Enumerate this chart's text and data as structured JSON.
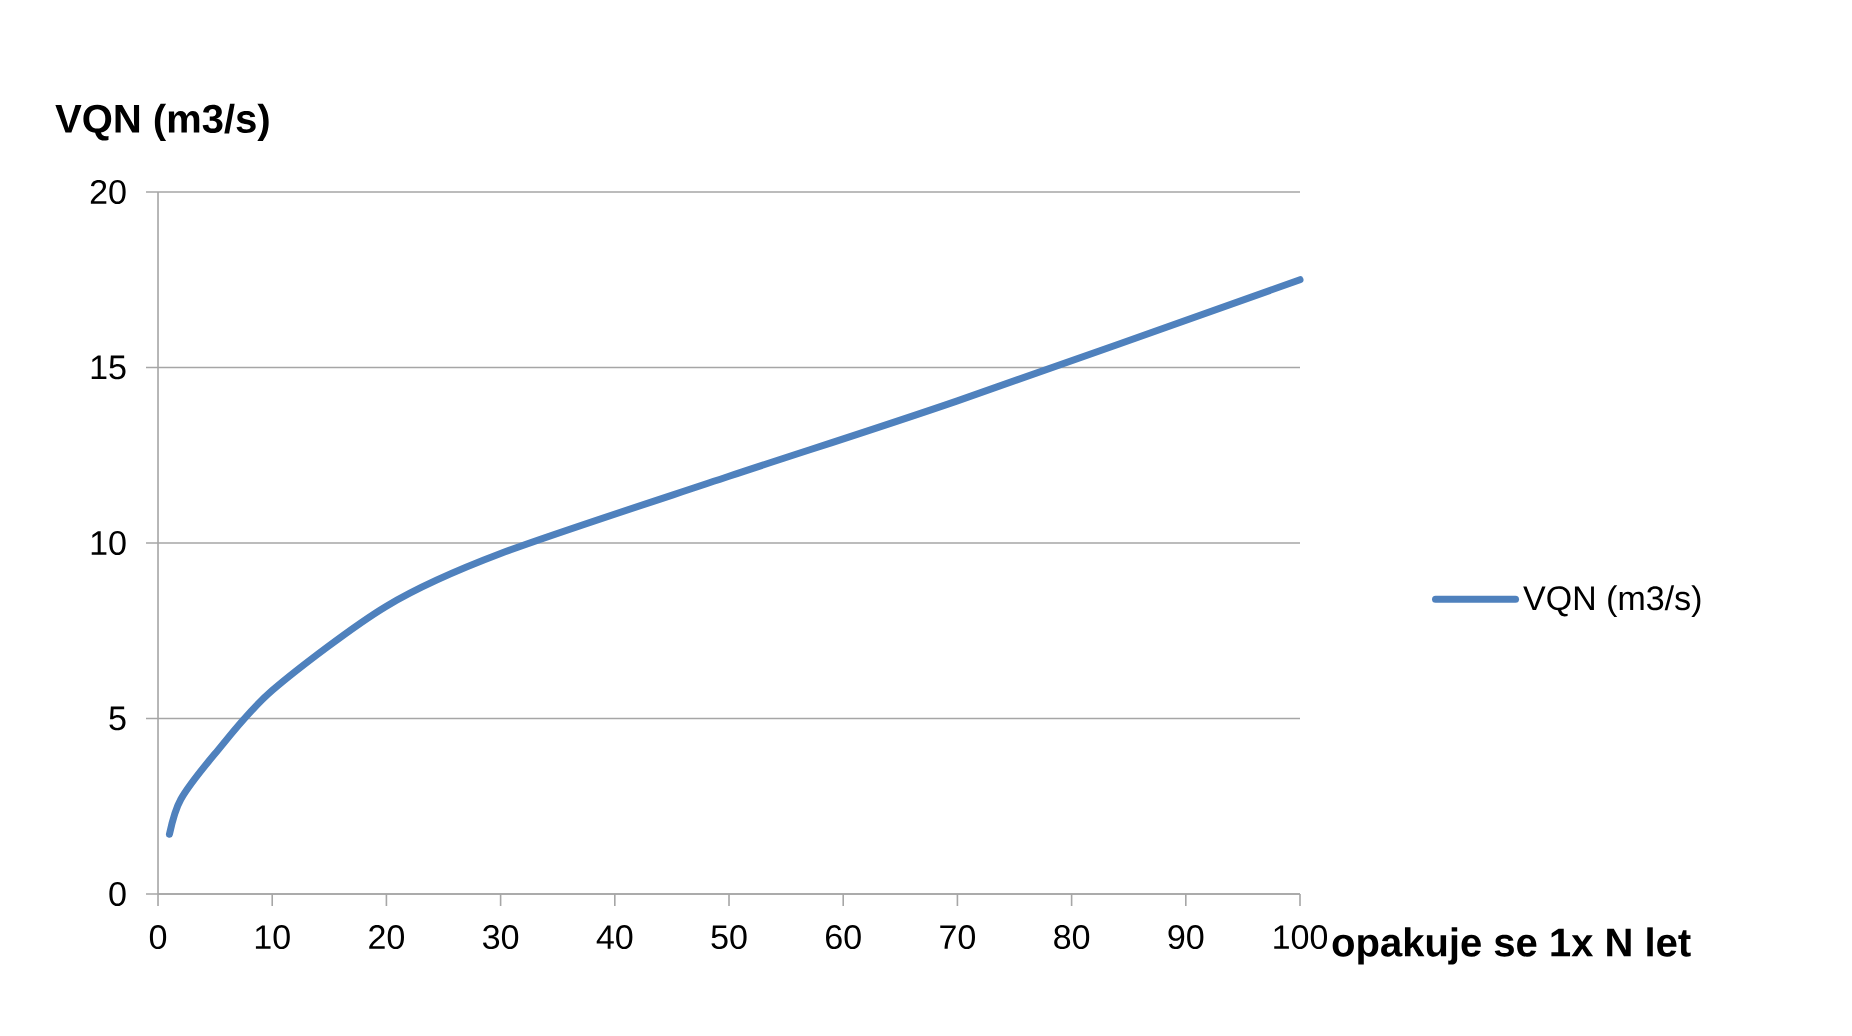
{
  "chart_data": {
    "type": "line",
    "ylabel": "VQN (m3/s)",
    "xlabel": "opakuje se 1x N let",
    "x": [
      1,
      2,
      5,
      10,
      20,
      30,
      50,
      70,
      100
    ],
    "series": [
      {
        "name": "VQN (m3/s)",
        "color": "#4f81bd",
        "values": [
          1.7,
          2.7,
          4.0,
          5.8,
          8.2,
          9.7,
          11.9,
          14.05,
          17.5
        ]
      }
    ],
    "xlim": [
      0,
      100
    ],
    "ylim": [
      0,
      20
    ],
    "xticks": [
      0,
      10,
      20,
      30,
      40,
      50,
      60,
      70,
      80,
      90,
      100
    ],
    "yticks": [
      0,
      5,
      10,
      15,
      20
    ],
    "grid": "y",
    "legend": "right",
    "marker": "none",
    "line_style": "solid"
  }
}
